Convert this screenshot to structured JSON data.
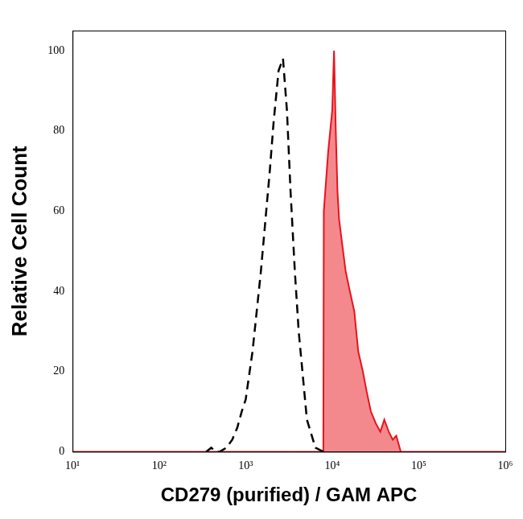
{
  "chart_data": {
    "type": "line",
    "x_label": "CD279 (purified) / GAM APC",
    "y_label": "Relative Cell Count",
    "log": "x",
    "grid": false,
    "xlim": [
      10,
      1000000
    ],
    "xticks": [
      {
        "value": 10,
        "label": "10¹"
      },
      {
        "value": 100,
        "label": "10²"
      },
      {
        "value": 1000,
        "label": "10³"
      },
      {
        "value": 10000,
        "label": "10⁴"
      },
      {
        "value": 100000,
        "label": "10⁵"
      },
      {
        "value": 1000000,
        "label": "10⁶"
      }
    ],
    "ylim": [
      0,
      105
    ],
    "yticks": [
      0,
      20,
      40,
      60,
      80,
      100
    ],
    "x": [
      10,
      100,
      350,
      400,
      450,
      500,
      600,
      700,
      800,
      900,
      1000,
      1200,
      1500,
      1900,
      2100,
      2400,
      2700,
      3000,
      3300,
      3700,
      4100,
      5100,
      6400,
      7900,
      8000,
      9000,
      10000,
      10500,
      11000,
      11500,
      12000,
      13000,
      14300,
      16000,
      18000,
      20000,
      22600,
      25000,
      28000,
      32000,
      36000,
      40000,
      45000,
      50000,
      55000,
      62000,
      100000,
      1000000
    ],
    "series": [
      {
        "color": "#000000",
        "type": "line",
        "line_style": "dashed",
        "values": [
          null,
          null,
          0,
          1,
          0,
          0,
          1,
          3,
          6,
          10,
          13,
          25,
          45,
          70,
          82,
          95,
          98,
          85,
          65,
          45,
          30,
          8,
          1,
          0,
          null,
          null,
          null,
          null,
          null,
          null,
          null,
          null,
          null,
          null,
          null,
          null,
          null,
          null,
          null,
          null,
          null,
          null,
          null,
          null,
          null,
          null,
          null,
          null
        ]
      },
      {
        "color": "#e8131b",
        "type": "area",
        "line_style": "solid",
        "values": [
          0,
          0,
          0,
          0,
          0,
          0,
          0,
          0,
          0,
          0,
          0,
          0,
          0,
          0,
          0,
          0,
          0,
          0,
          0,
          0,
          0,
          0,
          0,
          0,
          60,
          75,
          85,
          100,
          80,
          65,
          58,
          52,
          45,
          40,
          35,
          25,
          20,
          15,
          10,
          7,
          5,
          8,
          5,
          3,
          4,
          0,
          0,
          0
        ]
      }
    ]
  }
}
